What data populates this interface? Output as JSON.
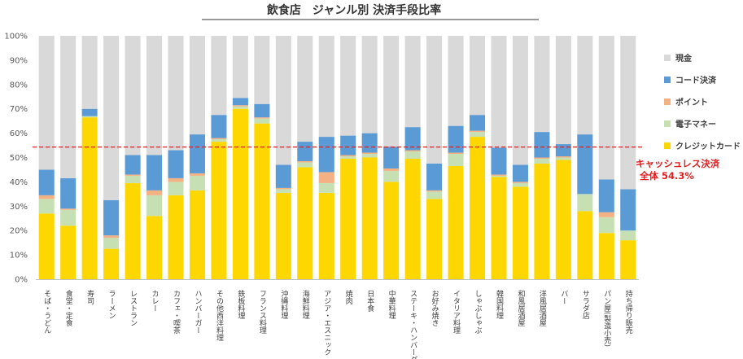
{
  "chart_data": {
    "type": "bar",
    "stacked": true,
    "title": "飲食店　ジャンル別 決済手段比率",
    "ylim": [
      0,
      100
    ],
    "y_ticks": [
      "0%",
      "10%",
      "20%",
      "30%",
      "40%",
      "50%",
      "60%",
      "70%",
      "80%",
      "90%",
      "100%"
    ],
    "categories": [
      "そば・うどん",
      "食堂・定食",
      "寿司",
      "ラーメン",
      "レストラン",
      "カレー",
      "カフェ・喫茶",
      "ハンバーガー",
      "その他西洋料理",
      "鉄板料理",
      "フランス料理",
      "沖縄料理",
      "海鮮料理",
      "アジア・エスニック",
      "焼肉",
      "日本食",
      "中華料理",
      "ステーキ・ハンバーグ",
      "お好み焼き",
      "イタリア料理",
      "しゃぶしゃぶ",
      "韓国料理",
      "和風居酒屋",
      "洋風居酒屋",
      "バー",
      "サラダ店",
      "パン屋(製造小売)",
      "持ち帰り販売"
    ],
    "series": [
      {
        "name": "クレジットカード",
        "color": "#ffd700",
        "values": [
          27,
          22,
          66.5,
          12.5,
          39.5,
          26,
          34.5,
          36.5,
          56.5,
          70,
          64,
          35.5,
          46,
          35.5,
          49.5,
          50,
          40,
          49.5,
          33,
          46.5,
          58.5,
          42,
          38,
          47.5,
          49,
          28,
          19,
          16
        ]
      },
      {
        "name": "電子マネー",
        "color": "#c6e0b4",
        "values": [
          6,
          6.5,
          0.5,
          4.5,
          3,
          8.5,
          5.5,
          6,
          1,
          1,
          2,
          1.5,
          2,
          4,
          1,
          1.5,
          4.5,
          3,
          3,
          5,
          2,
          0.5,
          1.5,
          2,
          1,
          7,
          6.5,
          4
        ]
      },
      {
        "name": "ポイント",
        "color": "#f4b183",
        "values": [
          1.5,
          0.5,
          0,
          1,
          0.5,
          2,
          1.5,
          1,
          0.5,
          0.5,
          0.5,
          0.5,
          0.5,
          4.5,
          0.5,
          0.5,
          1,
          0.5,
          0.5,
          0.5,
          0.5,
          0.5,
          0.5,
          0.5,
          0.5,
          0,
          2,
          0
        ]
      },
      {
        "name": "コード決済",
        "color": "#5b9bd5",
        "values": [
          10.5,
          12.5,
          3,
          14.5,
          8,
          14.5,
          11.5,
          16,
          9.5,
          3,
          5.5,
          9.5,
          8,
          14.5,
          8,
          8,
          9,
          9.5,
          11,
          11,
          6.5,
          11,
          7,
          10.5,
          5,
          24.5,
          13.5,
          17
        ]
      },
      {
        "name": "現金",
        "color": "#d9d9d9",
        "values": [
          55,
          58.5,
          30,
          67.5,
          49,
          49,
          47,
          40.5,
          32.5,
          25.5,
          28,
          53,
          43.5,
          41.5,
          41,
          40,
          45.5,
          37.5,
          52.5,
          37,
          32.5,
          46,
          53,
          39.5,
          44.5,
          40.5,
          59,
          63
        ]
      }
    ],
    "legend_order": [
      "現金",
      "コード決済",
      "ポイント",
      "電子マネー",
      "クレジットカード"
    ],
    "legend_position": "right",
    "grid": false,
    "reference_line": {
      "value": 54.3,
      "color": "#e02020",
      "style": "dashed"
    },
    "annotation": {
      "line1": "キャッシュレス決済",
      "line2": "全体 54.3%"
    }
  }
}
